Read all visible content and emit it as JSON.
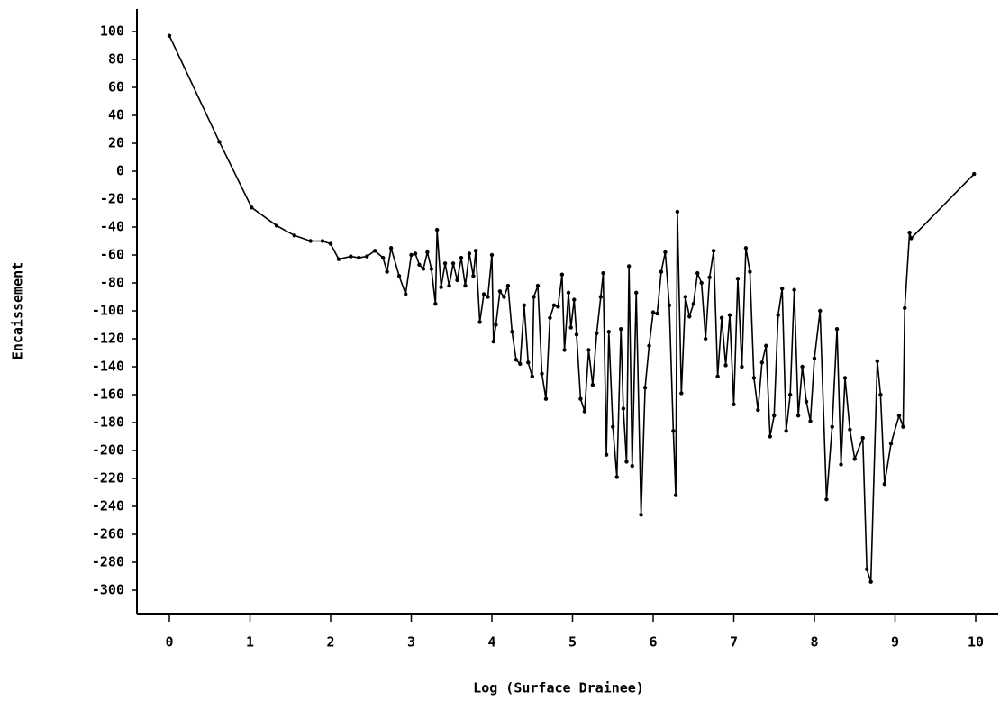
{
  "chart_data": {
    "type": "line",
    "x_label": "Log (Surface Drainee)",
    "y_label": "Encaissement",
    "xlim": [
      0,
      10
    ],
    "ylim": [
      -300,
      100
    ],
    "xticks": [
      0,
      1,
      2,
      3,
      4,
      5,
      6,
      7,
      8,
      9,
      10
    ],
    "yticks": [
      100,
      80,
      60,
      40,
      20,
      0,
      -20,
      -40,
      -60,
      -80,
      -100,
      -120,
      -140,
      -160,
      -180,
      -200,
      -220,
      -240,
      -260,
      -280,
      -300
    ],
    "series": [
      {
        "color": "#000000",
        "x": [
          0,
          0.62,
          1.02,
          1.33,
          1.55,
          1.75,
          1.9,
          2.0,
          2.1,
          2.25,
          2.35,
          2.45,
          2.55,
          2.65,
          2.7,
          2.75,
          2.85,
          2.93,
          3.0,
          3.05,
          3.1,
          3.15,
          3.2,
          3.25,
          3.3,
          3.32,
          3.37,
          3.42,
          3.47,
          3.52,
          3.57,
          3.62,
          3.67,
          3.72,
          3.77,
          3.8,
          3.85,
          3.9,
          3.95,
          4.0,
          4.02,
          4.05,
          4.1,
          4.15,
          4.2,
          4.25,
          4.3,
          4.35,
          4.4,
          4.45,
          4.5,
          4.52,
          4.57,
          4.62,
          4.67,
          4.72,
          4.77,
          4.82,
          4.87,
          4.9,
          4.95,
          4.98,
          5.02,
          5.05,
          5.1,
          5.15,
          5.2,
          5.25,
          5.3,
          5.35,
          5.38,
          5.42,
          5.45,
          5.5,
          5.55,
          5.6,
          5.63,
          5.67,
          5.7,
          5.74,
          5.79,
          5.85,
          5.9,
          5.95,
          6.0,
          6.05,
          6.1,
          6.15,
          6.2,
          6.25,
          6.28,
          6.3,
          6.35,
          6.4,
          6.45,
          6.5,
          6.55,
          6.6,
          6.65,
          6.7,
          6.75,
          6.8,
          6.85,
          6.9,
          6.95,
          7.0,
          7.05,
          7.1,
          7.15,
          7.2,
          7.25,
          7.3,
          7.35,
          7.4,
          7.45,
          7.5,
          7.55,
          7.6,
          7.65,
          7.7,
          7.75,
          7.8,
          7.85,
          7.9,
          7.95,
          8.0,
          8.07,
          8.15,
          8.22,
          8.28,
          8.33,
          8.38,
          8.44,
          8.5,
          8.6,
          8.65,
          8.7,
          8.78,
          8.82,
          8.87,
          8.95,
          9.05,
          9.1,
          9.12,
          9.18,
          9.2,
          9.98
        ],
        "values": [
          97,
          21,
          -26,
          -39,
          -46,
          -50,
          -50,
          -52,
          -63,
          -61,
          -62,
          -61,
          -57,
          -62,
          -72,
          -55,
          -75,
          -88,
          -60,
          -59,
          -67,
          -70,
          -58,
          -70,
          -95,
          -42,
          -83,
          -66,
          -82,
          -66,
          -78,
          -62,
          -82,
          -59,
          -75,
          -57,
          -108,
          -88,
          -90,
          -60,
          -122,
          -110,
          -86,
          -90,
          -82,
          -115,
          -135,
          -138,
          -96,
          -137,
          -147,
          -90,
          -82,
          -145,
          -163,
          -105,
          -96,
          -97,
          -74,
          -128,
          -87,
          -112,
          -92,
          -117,
          -163,
          -172,
          -128,
          -153,
          -116,
          -90,
          -73,
          -203,
          -115,
          -183,
          -219,
          -113,
          -170,
          -208,
          -68,
          -211,
          -87,
          -246,
          -155,
          -125,
          -101,
          -102,
          -72,
          -58,
          -96,
          -186,
          -232,
          -29,
          -159,
          -90,
          -104,
          -95,
          -73,
          -80,
          -120,
          -76,
          -57,
          -147,
          -105,
          -139,
          -103,
          -167,
          -77,
          -140,
          -55,
          -72,
          -148,
          -171,
          -137,
          -125,
          -190,
          -175,
          -103,
          -84,
          -186,
          -160,
          -85,
          -175,
          -140,
          -165,
          -179,
          -134,
          -100,
          -235,
          -183,
          -113,
          -210,
          -148,
          -185,
          -206,
          -191,
          -285,
          -294,
          -136,
          -160,
          -224,
          -195,
          -175,
          -183,
          -98,
          -44,
          -48,
          -2
        ]
      }
    ]
  }
}
